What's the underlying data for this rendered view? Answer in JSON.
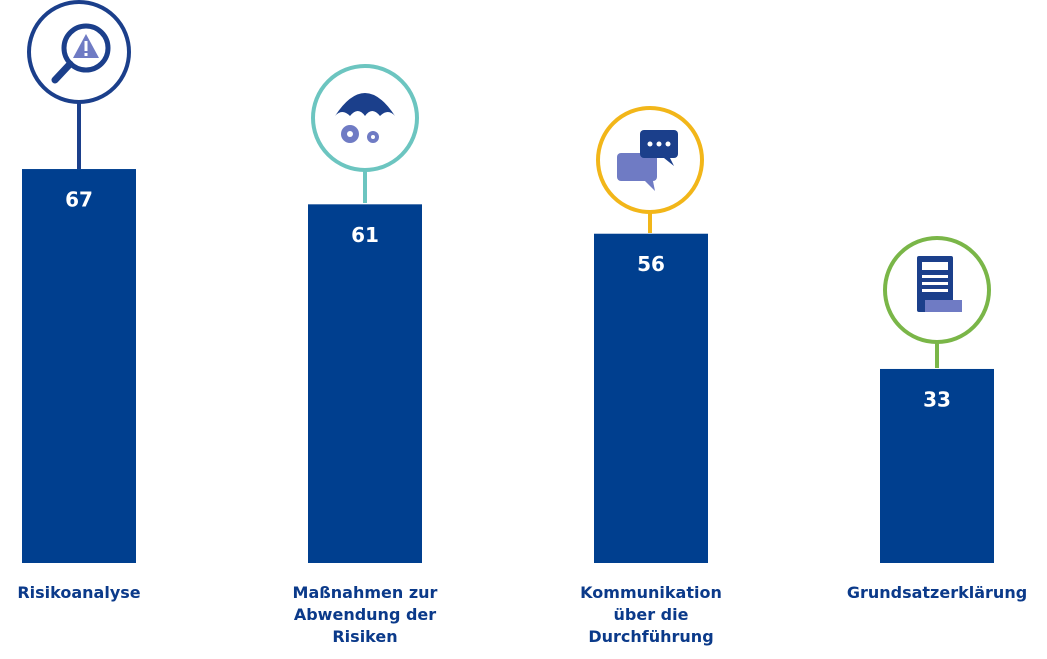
{
  "chart_data": {
    "type": "bar",
    "categories": [
      "Risikoanalyse",
      "Maßnahmen zur Abwendung der Risiken",
      "Kommunikation über die Durchführung",
      "Grundsatzerklärung"
    ],
    "values": [
      67,
      61,
      56,
      33
    ],
    "color": "#003f8f"
  }
}
